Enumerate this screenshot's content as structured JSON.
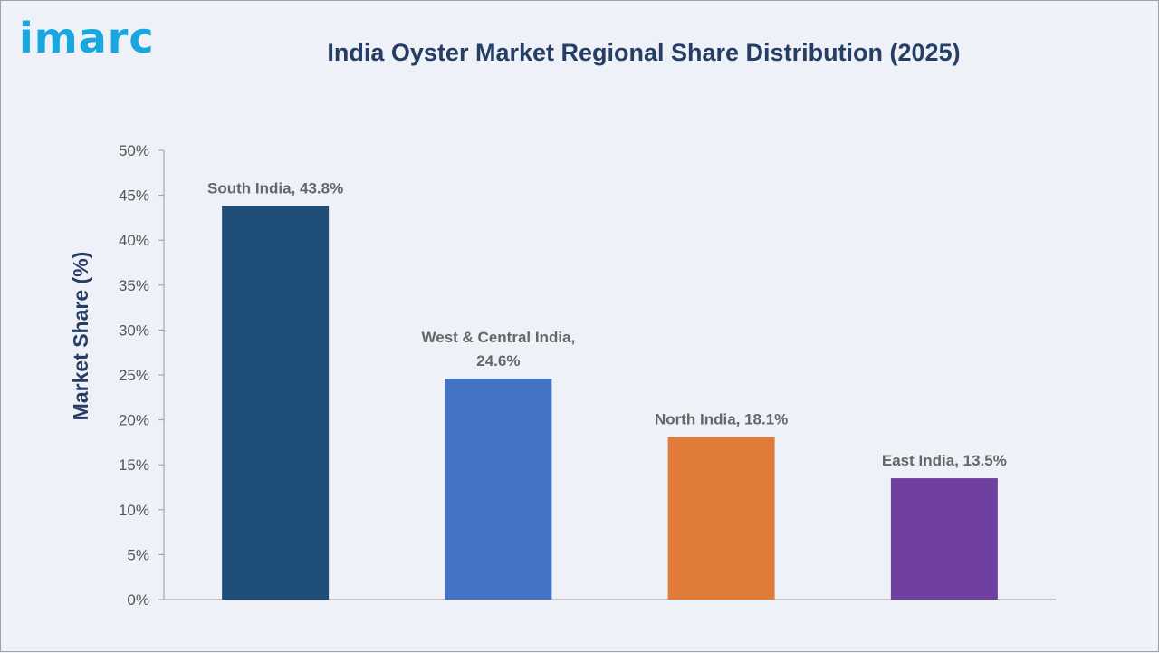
{
  "logo_text": "imarc",
  "chart_data": {
    "type": "bar",
    "title": "India Oyster Market Regional Share Distribution (2025)",
    "ylabel": "Market Share (%)",
    "xlabel": "",
    "ylim": [
      0,
      50
    ],
    "y_ticks": [
      "0%",
      "5%",
      "10%",
      "15%",
      "20%",
      "25%",
      "30%",
      "35%",
      "40%",
      "45%",
      "50%"
    ],
    "categories": [
      "South India",
      "West & Central India",
      "North India",
      "East India"
    ],
    "values": [
      43.8,
      24.6,
      18.1,
      13.5
    ],
    "data_labels": [
      [
        "South India, 43.8%"
      ],
      [
        "West & Central India,",
        "24.6%"
      ],
      [
        "North India, 18.1%"
      ],
      [
        "East India, 13.5%"
      ]
    ],
    "colors": [
      "#1f4e79",
      "#4472c4",
      "#e07b39",
      "#7040a0"
    ],
    "legend": "none",
    "grid": false
  }
}
